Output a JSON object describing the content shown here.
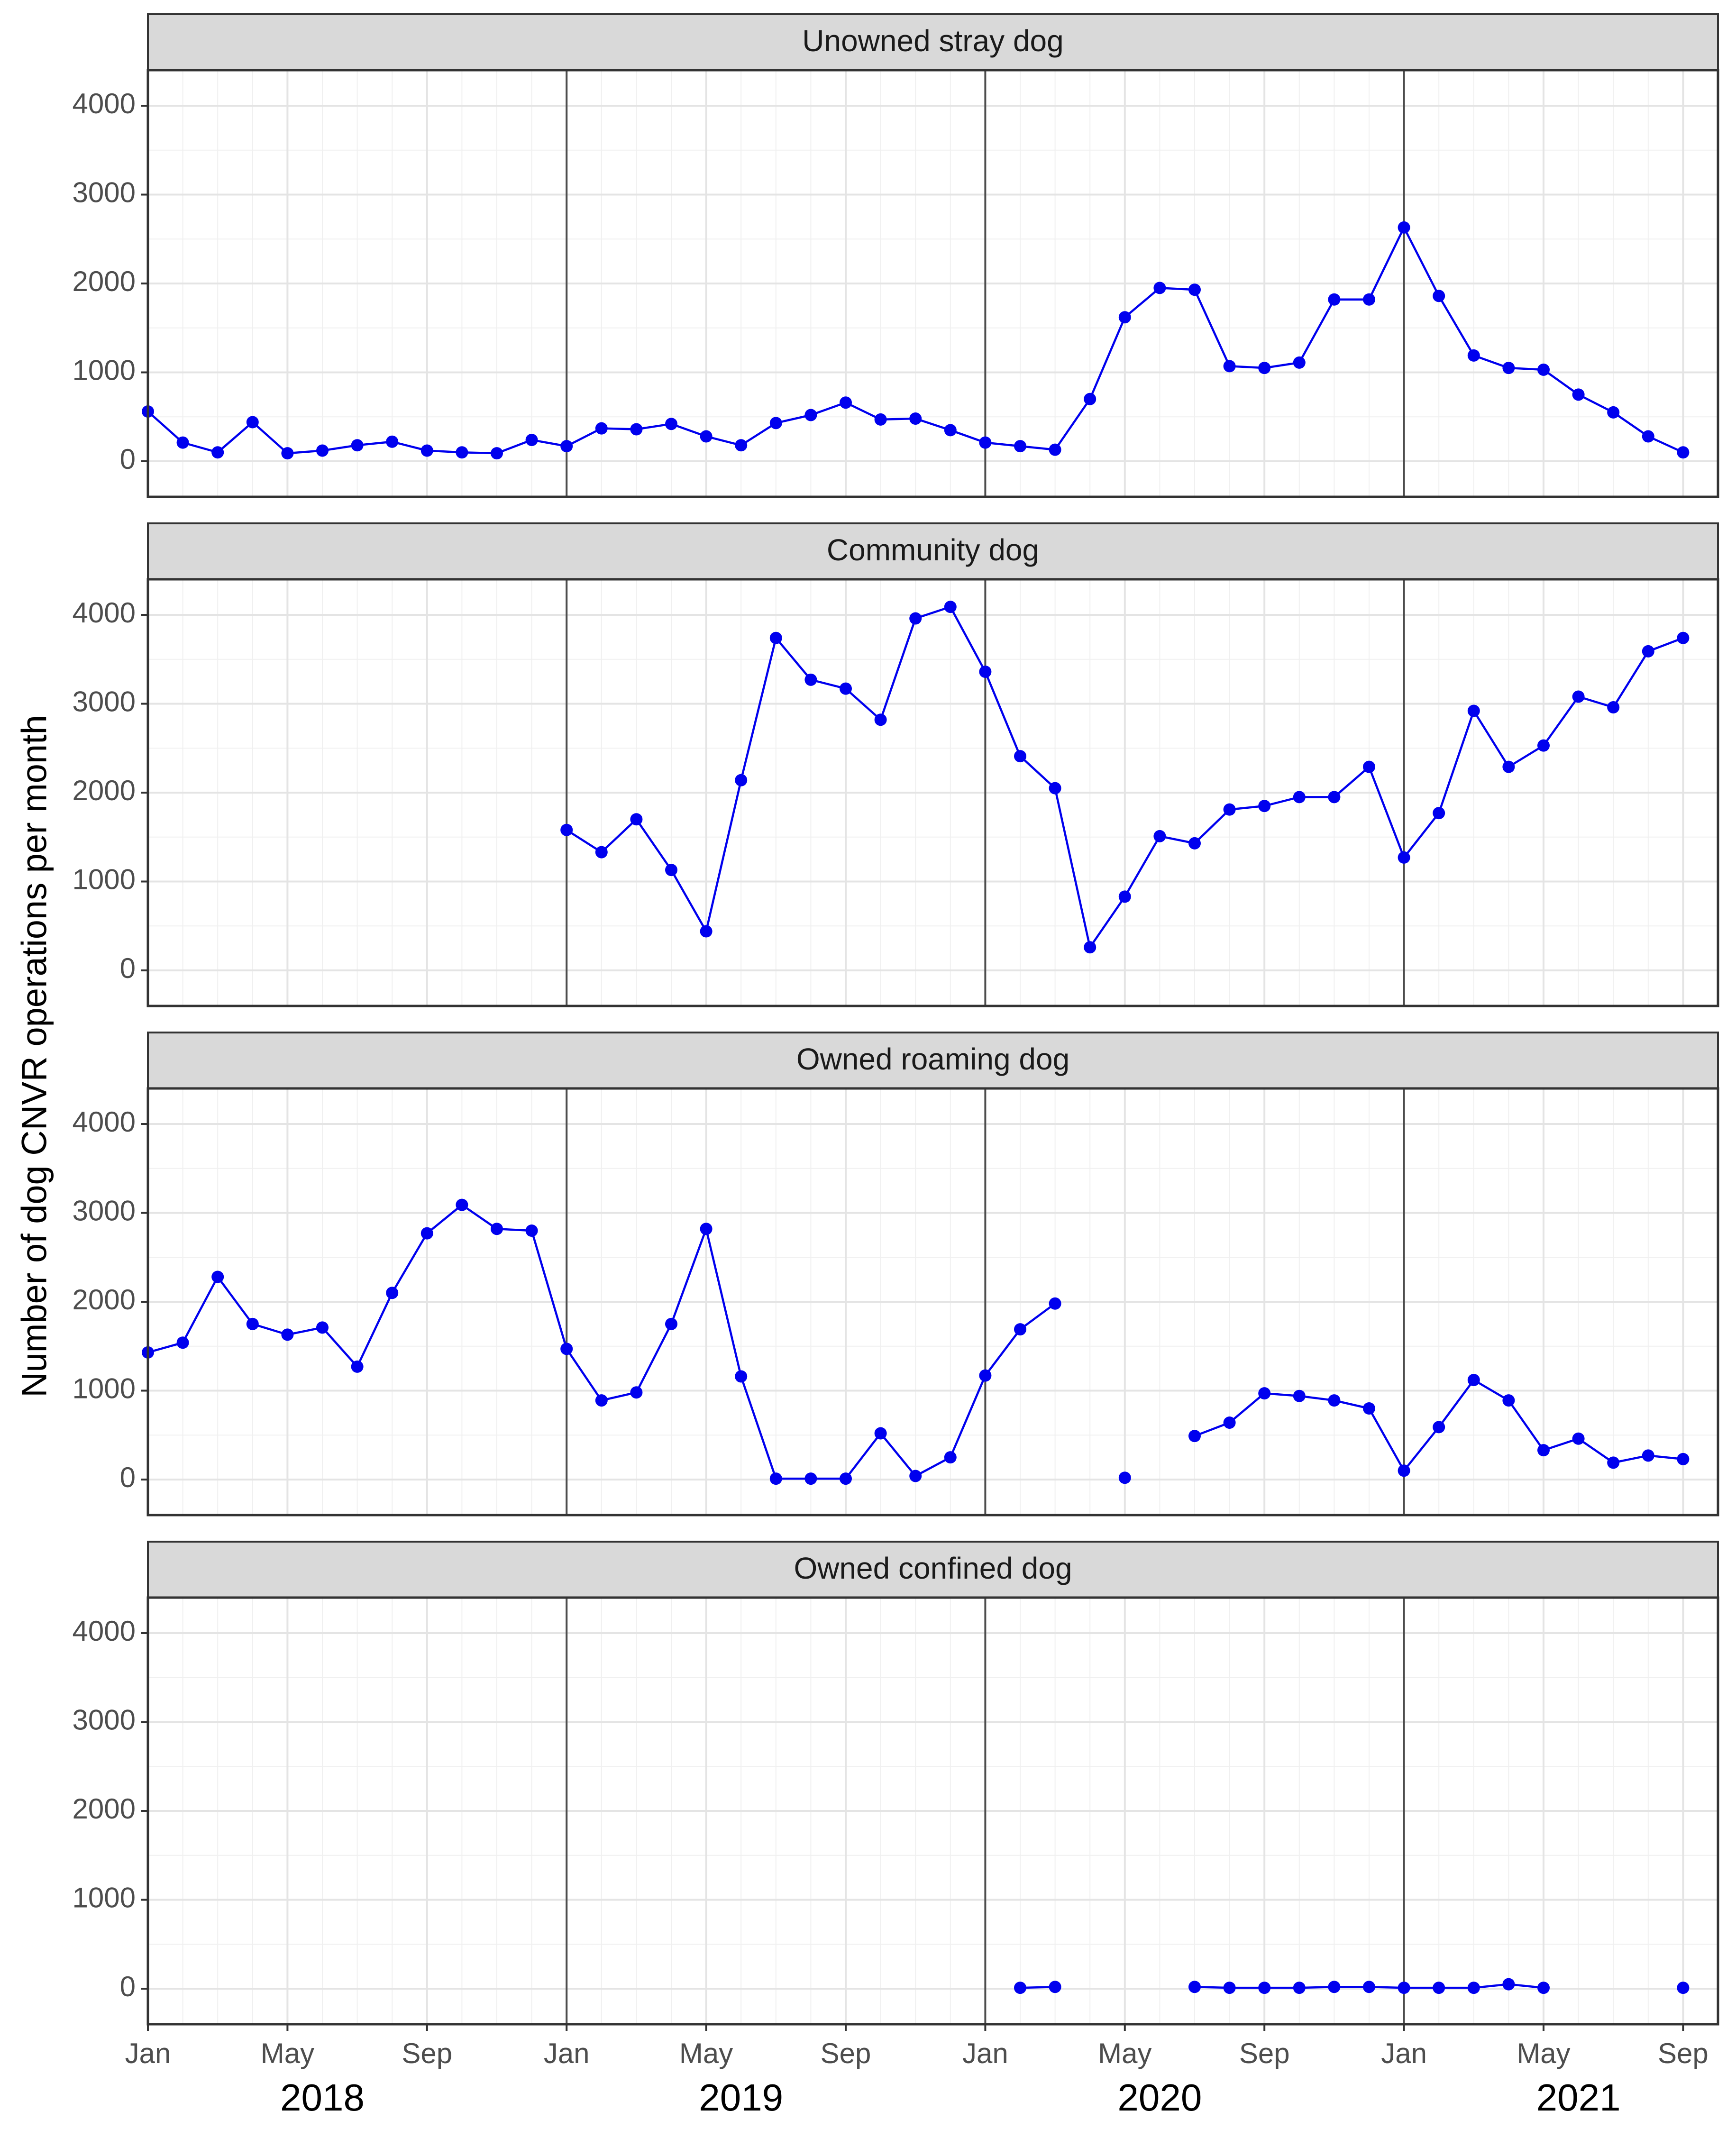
{
  "chart_data": {
    "type": "line",
    "ylabel": "Number of dog CNVR operations per month",
    "xlabel": "",
    "x_start": "2018-01",
    "x_tick_labels": [
      "Jan",
      "May",
      "Sep",
      "Jan",
      "May",
      "Sep",
      "Jan",
      "May",
      "Sep",
      "Jan",
      "May",
      "Sep"
    ],
    "x_tick_dates": [
      "2018-01",
      "2018-05",
      "2018-09",
      "2019-01",
      "2019-05",
      "2019-09",
      "2020-01",
      "2020-05",
      "2020-09",
      "2021-01",
      "2021-05",
      "2021-09"
    ],
    "year_labels": [
      "2018",
      "2019",
      "2020",
      "2021"
    ],
    "year_label_dates": [
      "2018-06",
      "2019-06",
      "2020-06",
      "2021-06"
    ],
    "year_separators": [
      "2019-01",
      "2020-01",
      "2021-01"
    ],
    "xlim": [
      "2018-01",
      "2021-10"
    ],
    "ylim": [
      -400,
      4400
    ],
    "y_ticks": [
      0,
      1000,
      2000,
      3000,
      4000
    ],
    "y_tick_labels": [
      "0",
      "1000",
      "2000",
      "3000",
      "4000"
    ],
    "grid": true,
    "line_color": "#0000ee",
    "panels": [
      {
        "title": "Unowned stray dog",
        "values": [
          560,
          210,
          100,
          440,
          90,
          120,
          180,
          220,
          120,
          100,
          90,
          240,
          170,
          370,
          360,
          420,
          280,
          180,
          430,
          520,
          660,
          470,
          480,
          350,
          210,
          170,
          130,
          700,
          1620,
          1950,
          1930,
          1070,
          1050,
          1110,
          1820,
          1820,
          2630,
          1860,
          1190,
          1050,
          1030,
          750,
          550,
          280,
          100
        ]
      },
      {
        "title": "Community dog",
        "values": [
          null,
          null,
          null,
          null,
          null,
          null,
          null,
          null,
          null,
          null,
          null,
          null,
          1580,
          1330,
          1700,
          1130,
          440,
          2140,
          3740,
          3270,
          3170,
          2820,
          3960,
          4090,
          3360,
          2410,
          2050,
          260,
          830,
          1510,
          1430,
          1810,
          1850,
          1950,
          1950,
          2290,
          1270,
          1770,
          2920,
          2290,
          2530,
          3080,
          2960,
          3590,
          3740
        ]
      },
      {
        "title": "Owned roaming dog",
        "values": [
          1430,
          1540,
          2280,
          1750,
          1630,
          1710,
          1270,
          2100,
          2770,
          3090,
          2820,
          2800,
          1470,
          890,
          980,
          1750,
          2820,
          1160,
          10,
          10,
          10,
          520,
          40,
          250,
          1170,
          1690,
          1980,
          null,
          20,
          null,
          490,
          640,
          970,
          940,
          890,
          800,
          100,
          590,
          1120,
          890,
          330,
          460,
          190,
          270,
          230
        ]
      },
      {
        "title": "Owned confined dog",
        "values": [
          null,
          null,
          null,
          null,
          null,
          null,
          null,
          null,
          null,
          null,
          null,
          null,
          null,
          null,
          null,
          null,
          null,
          null,
          null,
          null,
          null,
          null,
          null,
          null,
          null,
          10,
          20,
          null,
          null,
          null,
          20,
          10,
          10,
          10,
          20,
          20,
          10,
          10,
          10,
          50,
          10,
          null,
          null,
          null,
          10
        ]
      }
    ]
  }
}
